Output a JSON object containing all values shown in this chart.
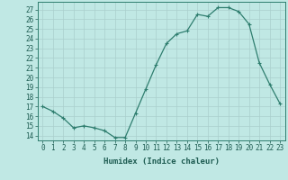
{
  "x": [
    0,
    1,
    2,
    3,
    4,
    5,
    6,
    7,
    8,
    9,
    10,
    11,
    12,
    13,
    14,
    15,
    16,
    17,
    18,
    19,
    20,
    21,
    22,
    23
  ],
  "y": [
    17.0,
    16.5,
    15.8,
    14.8,
    15.0,
    14.8,
    14.5,
    13.8,
    13.8,
    16.3,
    18.8,
    21.3,
    23.5,
    24.5,
    24.8,
    26.5,
    26.3,
    27.2,
    27.2,
    26.8,
    25.5,
    21.5,
    19.3,
    17.3
  ],
  "line_color": "#2e7d6e",
  "marker": "+",
  "marker_size": 3,
  "bg_color": "#c0e8e4",
  "grid_color": "#aacfcc",
  "xlabel": "Humidex (Indice chaleur)",
  "ylabel_ticks": [
    14,
    15,
    16,
    17,
    18,
    19,
    20,
    21,
    22,
    23,
    24,
    25,
    26,
    27
  ],
  "ylim": [
    13.5,
    27.8
  ],
  "xlim": [
    -0.5,
    23.5
  ],
  "xlabel_fontsize": 6.5,
  "tick_fontsize": 5.5,
  "label_color": "#1e5c52"
}
